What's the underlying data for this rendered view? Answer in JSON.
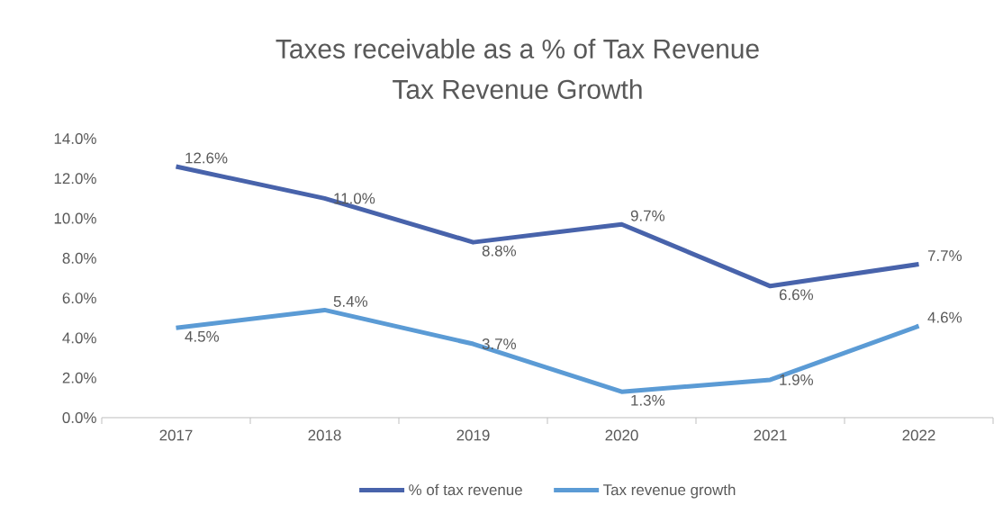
{
  "chart_data": {
    "type": "line",
    "title": "Taxes receivable as a % of Tax Revenue",
    "subtitle": "Tax Revenue Growth",
    "categories": [
      "2017",
      "2018",
      "2019",
      "2020",
      "2021",
      "2022"
    ],
    "series": [
      {
        "name": "% of tax revenue",
        "color": "#4863ab",
        "values": [
          12.6,
          11.0,
          8.8,
          9.7,
          6.6,
          7.7
        ],
        "value_labels": [
          "12.6%",
          "11.0%",
          "8.8%",
          "9.7%",
          "6.6%",
          "7.7%"
        ]
      },
      {
        "name": "Tax revenue growth",
        "color": "#5b9bd5",
        "values": [
          4.5,
          5.4,
          3.7,
          1.3,
          1.9,
          4.6
        ],
        "value_labels": [
          "4.5%",
          "5.4%",
          "3.7%",
          "1.3%",
          "1.9%",
          "4.6%"
        ]
      }
    ],
    "ylim": [
      0,
      14
    ],
    "yticks": [
      {
        "value": 0,
        "label": "0.0%"
      },
      {
        "value": 2,
        "label": "2.0%"
      },
      {
        "value": 4,
        "label": "4.0%"
      },
      {
        "value": 6,
        "label": "6.0%"
      },
      {
        "value": 8,
        "label": "8.0%"
      },
      {
        "value": 10,
        "label": "10.0%"
      },
      {
        "value": 12,
        "label": "12.0%"
      },
      {
        "value": 14,
        "label": "14.0%"
      }
    ],
    "grid": false,
    "legend": "bottom",
    "marker": "none",
    "line_style": "solid"
  }
}
